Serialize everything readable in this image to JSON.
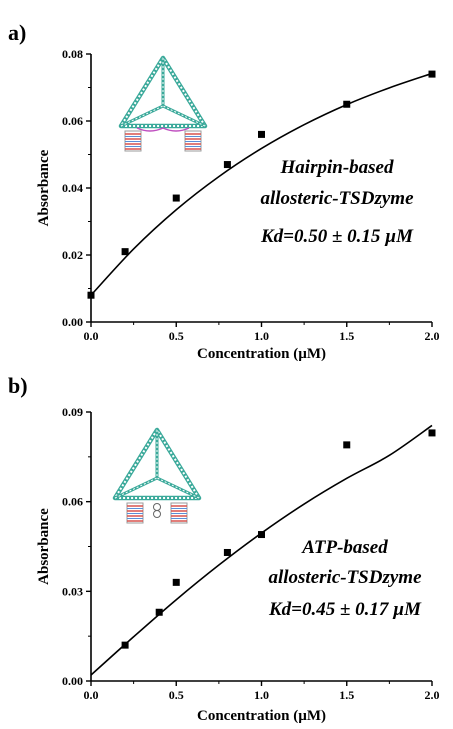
{
  "chart_data": [
    {
      "type": "scatter",
      "panel_label": "a)",
      "xlabel": "Concentration (µM)",
      "ylabel": "Absorbance",
      "xlim": [
        0,
        2.0
      ],
      "ylim": [
        0,
        0.08
      ],
      "x_ticks": [
        "0.0",
        "0.5",
        "1.0",
        "1.5",
        "2.0"
      ],
      "x_tick_values": [
        0,
        0.5,
        1.0,
        1.5,
        2.0
      ],
      "y_ticks": [
        "0.00",
        "0.02",
        "0.04",
        "0.06",
        "0.08"
      ],
      "y_tick_values": [
        0,
        0.02,
        0.04,
        0.06,
        0.08
      ],
      "points": [
        {
          "x": 0.0,
          "y": 0.008
        },
        {
          "x": 0.2,
          "y": 0.021
        },
        {
          "x": 0.5,
          "y": 0.037
        },
        {
          "x": 0.8,
          "y": 0.047
        },
        {
          "x": 1.0,
          "y": 0.056
        },
        {
          "x": 1.5,
          "y": 0.065
        },
        {
          "x": 2.0,
          "y": 0.074
        }
      ],
      "fit_curve": [
        {
          "x": 0.0,
          "y": 0.008
        },
        {
          "x": 0.25,
          "y": 0.0218
        },
        {
          "x": 0.5,
          "y": 0.0335
        },
        {
          "x": 0.75,
          "y": 0.0434
        },
        {
          "x": 1.0,
          "y": 0.0518
        },
        {
          "x": 1.25,
          "y": 0.0589
        },
        {
          "x": 1.5,
          "y": 0.0649
        },
        {
          "x": 1.75,
          "y": 0.0699
        },
        {
          "x": 2.0,
          "y": 0.0742
        }
      ],
      "annotation": [
        "Hairpin-based",
        "allosteric-TSDzyme",
        "Kd=0.50 ± 0.15 µM"
      ],
      "grid": false
    },
    {
      "type": "scatter",
      "panel_label": "b)",
      "xlabel": "Concentration (µM)",
      "ylabel": "Absorbance",
      "xlim": [
        0,
        2.0
      ],
      "ylim": [
        0,
        0.09
      ],
      "x_ticks": [
        "0.0",
        "0.5",
        "1.0",
        "1.5",
        "2.0"
      ],
      "x_tick_values": [
        0,
        0.5,
        1.0,
        1.5,
        2.0
      ],
      "y_ticks": [
        "0.00",
        "0.03",
        "0.06",
        "0.09"
      ],
      "y_tick_values": [
        0,
        0.03,
        0.06,
        0.09
      ],
      "points": [
        {
          "x": 0.2,
          "y": 0.012
        },
        {
          "x": 0.4,
          "y": 0.023
        },
        {
          "x": 0.5,
          "y": 0.033
        },
        {
          "x": 0.8,
          "y": 0.043
        },
        {
          "x": 1.0,
          "y": 0.049
        },
        {
          "x": 1.5,
          "y": 0.079
        },
        {
          "x": 2.0,
          "y": 0.083
        }
      ],
      "fit_curve": [
        {
          "x": 0.0,
          "y": 0.002
        },
        {
          "x": 0.25,
          "y": 0.0148
        },
        {
          "x": 0.5,
          "y": 0.0272
        },
        {
          "x": 0.75,
          "y": 0.0388
        },
        {
          "x": 1.0,
          "y": 0.0495
        },
        {
          "x": 1.25,
          "y": 0.0592
        },
        {
          "x": 1.5,
          "y": 0.0678
        },
        {
          "x": 1.75,
          "y": 0.0755
        },
        {
          "x": 2.0,
          "y": 0.0855
        }
      ],
      "annotation": [
        "ATP-based",
        "allosteric-TSDzyme",
        "Kd=0.45 ± 0.17 µM"
      ],
      "grid": false
    }
  ],
  "colors": {
    "tetrahedron": "#3aa99a",
    "helix": "#d9534f",
    "linker": "#c050c0",
    "axis": "#000000",
    "marker": "#000000"
  },
  "icons": [
    "dna-tetrahedron-icon",
    "dna-tetrahedron-icon"
  ]
}
